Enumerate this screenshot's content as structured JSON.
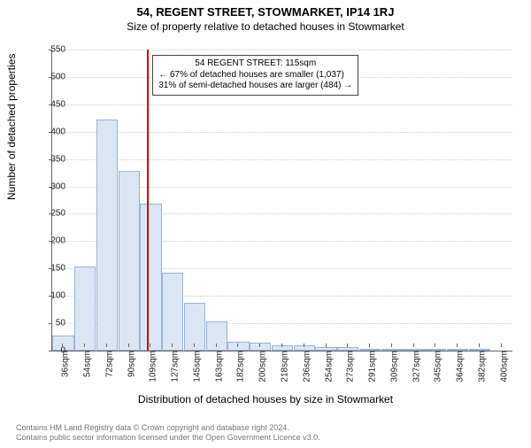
{
  "title": "54, REGENT STREET, STOWMARKET, IP14 1RJ",
  "subtitle": "Size of property relative to detached houses in Stowmarket",
  "ylabel": "Number of detached properties",
  "xlabel": "Distribution of detached houses by size in Stowmarket",
  "footer_line1": "Contains HM Land Registry data © Crown copyright and database right 2024.",
  "footer_line2": "Contains public sector information licensed under the Open Government Licence v3.0.",
  "chart": {
    "type": "histogram",
    "ylim": [
      0,
      550
    ],
    "ytick_step": 50,
    "bar_fill": "#dbe6f5",
    "bar_border": "#9ab3d5",
    "grid_color": "#cccccc",
    "background_color": "#ffffff",
    "redline_color": "#d40000",
    "redline_x_index": 4.33,
    "categories": [
      "36sqm",
      "54sqm",
      "72sqm",
      "90sqm",
      "109sqm",
      "127sqm",
      "145sqm",
      "163sqm",
      "182sqm",
      "200sqm",
      "218sqm",
      "236sqm",
      "254sqm",
      "273sqm",
      "291sqm",
      "309sqm",
      "327sqm",
      "345sqm",
      "364sqm",
      "382sqm",
      "400sqm"
    ],
    "values": [
      28,
      153,
      422,
      328,
      268,
      142,
      88,
      54,
      16,
      14,
      10,
      10,
      6,
      7,
      4,
      2,
      2,
      1,
      1,
      1,
      0
    ],
    "title_fontsize": 13,
    "label_fontsize": 12,
    "tick_fontsize": 10
  },
  "annotation": {
    "line1": "54 REGENT STREET: 115sqm",
    "line2": "← 67% of detached houses are smaller (1,037)",
    "line3": "31% of semi-detached houses are larger (484) →"
  }
}
